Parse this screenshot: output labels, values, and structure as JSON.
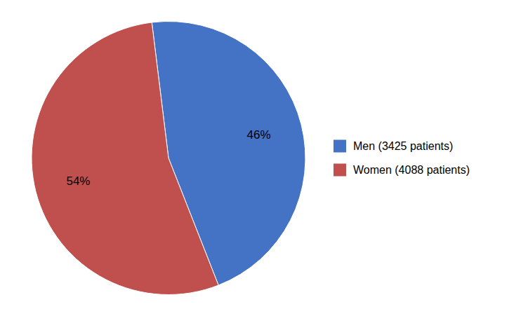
{
  "chart_data": {
    "type": "pie",
    "categories": [
      "Men (3425 patients)",
      "Women (4088 patients)"
    ],
    "values": [
      46,
      54
    ],
    "value_labels": [
      "46%",
      "54%"
    ],
    "colors": [
      "#4472C4",
      "#C0504D"
    ],
    "data_labels": true,
    "legend": "right"
  }
}
